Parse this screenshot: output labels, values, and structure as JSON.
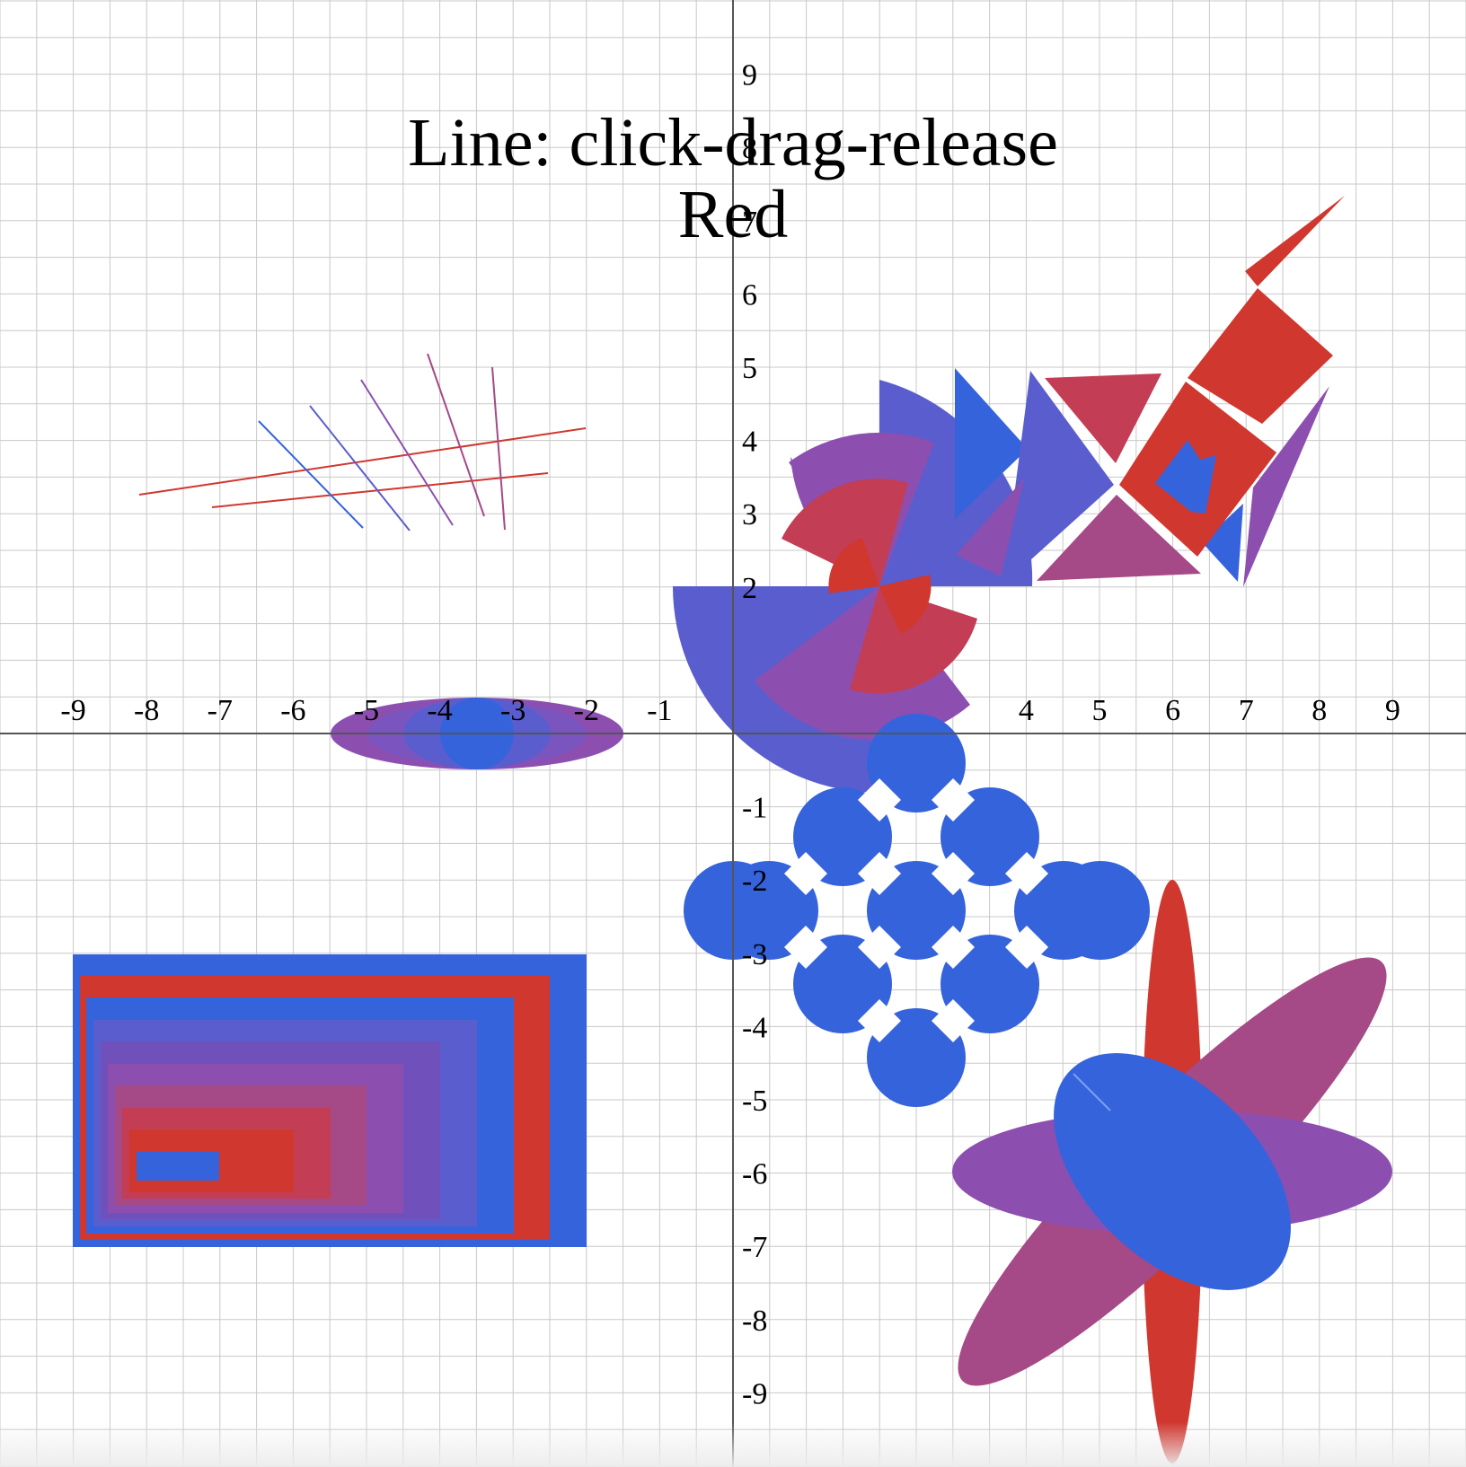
{
  "title": "Line: click-drag-release",
  "current_color": "Red",
  "colors": {
    "red": "#d0372f",
    "blue": "#3563dc",
    "indigo": "#5a5dce",
    "purple": "#8c4fb0",
    "magenta": "#a54987",
    "crimson": "#c33d55",
    "grid": "#c8c8c8",
    "axis": "#555555"
  },
  "axes": {
    "x_ticks": [
      "-9",
      "-8",
      "-7",
      "-6",
      "-5",
      "-4",
      "-3",
      "-2",
      "-1",
      "4",
      "5",
      "6",
      "7",
      "8",
      "9"
    ],
    "y_ticks": [
      "9",
      "8",
      "7",
      "6",
      "5",
      "4",
      "3",
      "2",
      "-1",
      "-2",
      "-3",
      "-4",
      "-5",
      "-6",
      "-7",
      "-8",
      "-9"
    ],
    "xlim": [
      -10,
      10
    ],
    "ylim": [
      -10,
      10
    ],
    "grid_step": 0.5
  }
}
